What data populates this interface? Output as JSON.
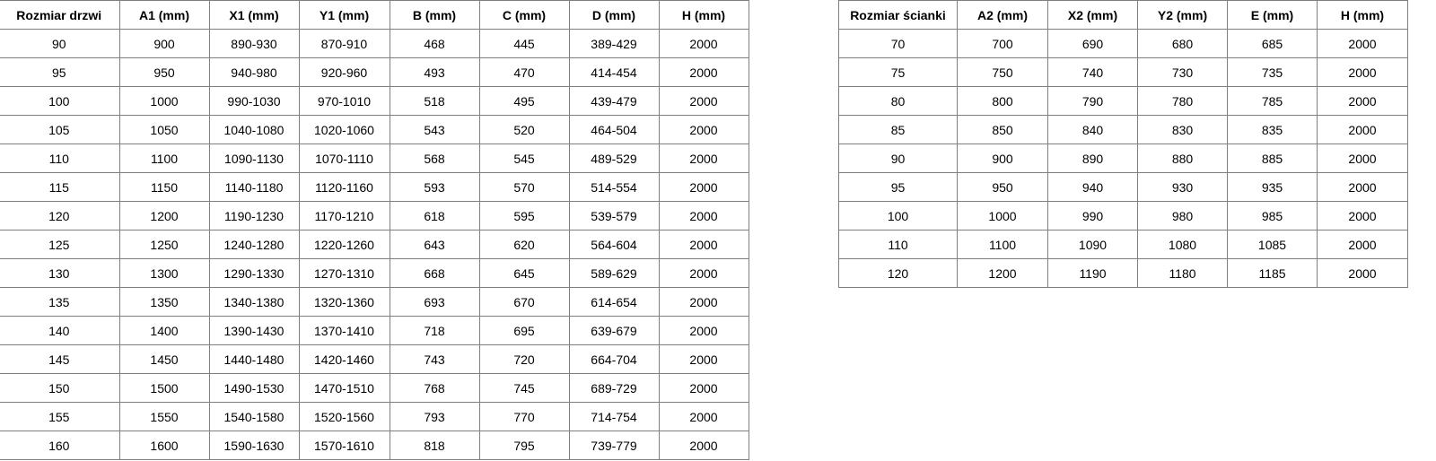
{
  "doors_table": {
    "headers": [
      "Rozmiar drzwi",
      "A1 (mm)",
      "X1 (mm)",
      "Y1 (mm)",
      "B (mm)",
      "C (mm)",
      "D (mm)",
      "H (mm)"
    ],
    "rows": [
      [
        "90",
        "900",
        "890-930",
        "870-910",
        "468",
        "445",
        "389-429",
        "2000"
      ],
      [
        "95",
        "950",
        "940-980",
        "920-960",
        "493",
        "470",
        "414-454",
        "2000"
      ],
      [
        "100",
        "1000",
        "990-1030",
        "970-1010",
        "518",
        "495",
        "439-479",
        "2000"
      ],
      [
        "105",
        "1050",
        "1040-1080",
        "1020-1060",
        "543",
        "520",
        "464-504",
        "2000"
      ],
      [
        "110",
        "1100",
        "1090-1130",
        "1070-1110",
        "568",
        "545",
        "489-529",
        "2000"
      ],
      [
        "115",
        "1150",
        "1140-1180",
        "1120-1160",
        "593",
        "570",
        "514-554",
        "2000"
      ],
      [
        "120",
        "1200",
        "1190-1230",
        "1170-1210",
        "618",
        "595",
        "539-579",
        "2000"
      ],
      [
        "125",
        "1250",
        "1240-1280",
        "1220-1260",
        "643",
        "620",
        "564-604",
        "2000"
      ],
      [
        "130",
        "1300",
        "1290-1330",
        "1270-1310",
        "668",
        "645",
        "589-629",
        "2000"
      ],
      [
        "135",
        "1350",
        "1340-1380",
        "1320-1360",
        "693",
        "670",
        "614-654",
        "2000"
      ],
      [
        "140",
        "1400",
        "1390-1430",
        "1370-1410",
        "718",
        "695",
        "639-679",
        "2000"
      ],
      [
        "145",
        "1450",
        "1440-1480",
        "1420-1460",
        "743",
        "720",
        "664-704",
        "2000"
      ],
      [
        "150",
        "1500",
        "1490-1530",
        "1470-1510",
        "768",
        "745",
        "689-729",
        "2000"
      ],
      [
        "155",
        "1550",
        "1540-1580",
        "1520-1560",
        "793",
        "770",
        "714-754",
        "2000"
      ],
      [
        "160",
        "1600",
        "1590-1630",
        "1570-1610",
        "818",
        "795",
        "739-779",
        "2000"
      ]
    ]
  },
  "wall_table": {
    "headers": [
      "Rozmiar ścianki",
      "A2 (mm)",
      "X2 (mm)",
      "Y2 (mm)",
      "E (mm)",
      "H (mm)"
    ],
    "rows": [
      [
        "70",
        "700",
        "690",
        "680",
        "685",
        "2000"
      ],
      [
        "75",
        "750",
        "740",
        "730",
        "735",
        "2000"
      ],
      [
        "80",
        "800",
        "790",
        "780",
        "785",
        "2000"
      ],
      [
        "85",
        "850",
        "840",
        "830",
        "835",
        "2000"
      ],
      [
        "90",
        "900",
        "890",
        "880",
        "885",
        "2000"
      ],
      [
        "95",
        "950",
        "940",
        "930",
        "935",
        "2000"
      ],
      [
        "100",
        "1000",
        "990",
        "980",
        "985",
        "2000"
      ],
      [
        "110",
        "1100",
        "1090",
        "1080",
        "1085",
        "2000"
      ],
      [
        "120",
        "1200",
        "1190",
        "1180",
        "1185",
        "2000"
      ]
    ]
  }
}
